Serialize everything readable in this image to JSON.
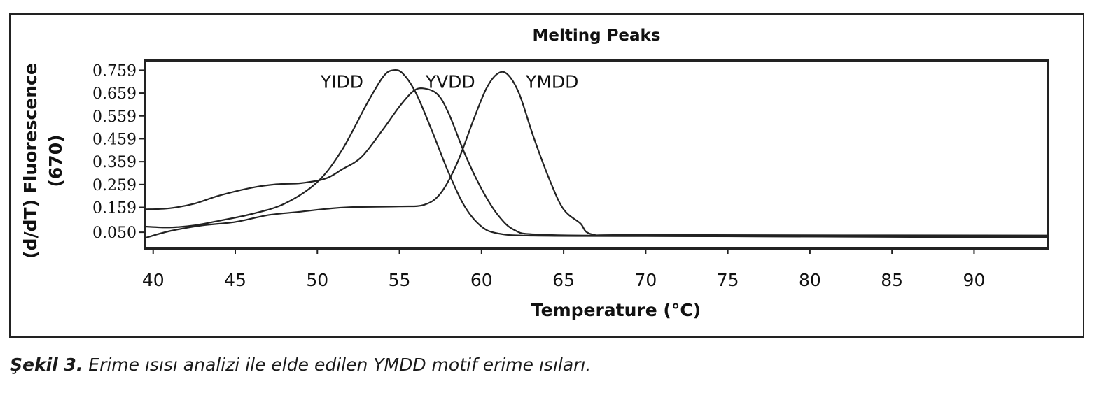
{
  "chart_data": {
    "type": "line",
    "title": "Melting Peaks",
    "xlabel": "Temperature (°C)",
    "ylabel_line1": "(d/dT) Fluorescence",
    "ylabel_line2": "(670)",
    "xlim": [
      39.5,
      94.5
    ],
    "ylim": [
      -0.02,
      0.8
    ],
    "x_ticks": [
      40,
      45,
      50,
      55,
      60,
      65,
      70,
      75,
      80,
      85,
      90
    ],
    "y_ticks": [
      0.05,
      0.159,
      0.259,
      0.359,
      0.459,
      0.559,
      0.659,
      0.759
    ],
    "y_tick_labels": [
      "0.050",
      "0.159",
      "0.259",
      "0.359",
      "0.459",
      "0.559",
      "0.659",
      "0.759"
    ],
    "grid": false,
    "series": [
      {
        "name": "YIDD",
        "points": [
          [
            39.5,
            0.075
          ],
          [
            41,
            0.071
          ],
          [
            42.5,
            0.08
          ],
          [
            44,
            0.1
          ],
          [
            46,
            0.13
          ],
          [
            48,
            0.175
          ],
          [
            50,
            0.27
          ],
          [
            51.5,
            0.41
          ],
          [
            53,
            0.61
          ],
          [
            54,
            0.73
          ],
          [
            54.6,
            0.759
          ],
          [
            55.2,
            0.745
          ],
          [
            56,
            0.66
          ],
          [
            57,
            0.49
          ],
          [
            58,
            0.31
          ],
          [
            59,
            0.16
          ],
          [
            60,
            0.075
          ],
          [
            61,
            0.045
          ],
          [
            63,
            0.035
          ],
          [
            70,
            0.033
          ],
          [
            94.5,
            0.03
          ]
        ]
      },
      {
        "name": "YVDD",
        "points": [
          [
            39.5,
            0.15
          ],
          [
            41,
            0.155
          ],
          [
            42.5,
            0.175
          ],
          [
            44,
            0.21
          ],
          [
            46,
            0.245
          ],
          [
            47.5,
            0.26
          ],
          [
            49,
            0.265
          ],
          [
            50.5,
            0.285
          ],
          [
            51.5,
            0.325
          ],
          [
            52.7,
            0.38
          ],
          [
            54,
            0.5
          ],
          [
            55,
            0.6
          ],
          [
            55.8,
            0.665
          ],
          [
            56.4,
            0.68
          ],
          [
            57.3,
            0.655
          ],
          [
            58,
            0.57
          ],
          [
            59,
            0.39
          ],
          [
            60,
            0.24
          ],
          [
            61,
            0.125
          ],
          [
            62,
            0.06
          ],
          [
            63.5,
            0.04
          ],
          [
            70,
            0.034
          ],
          [
            94.5,
            0.027
          ]
        ]
      },
      {
        "name": "YMDD",
        "points": [
          [
            39.5,
            0.025
          ],
          [
            41,
            0.055
          ],
          [
            43,
            0.08
          ],
          [
            45,
            0.095
          ],
          [
            47,
            0.125
          ],
          [
            49,
            0.14
          ],
          [
            50.5,
            0.152
          ],
          [
            52,
            0.16
          ],
          [
            55,
            0.163
          ],
          [
            56.5,
            0.17
          ],
          [
            57.5,
            0.22
          ],
          [
            58.5,
            0.35
          ],
          [
            59.5,
            0.54
          ],
          [
            60.3,
            0.68
          ],
          [
            61,
            0.745
          ],
          [
            61.6,
            0.74
          ],
          [
            62.3,
            0.655
          ],
          [
            63.2,
            0.46
          ],
          [
            64.2,
            0.27
          ],
          [
            65,
            0.15
          ],
          [
            66,
            0.09
          ],
          [
            66.8,
            0.04
          ],
          [
            70,
            0.038
          ],
          [
            94.5,
            0.036
          ]
        ]
      }
    ],
    "annotations": [
      {
        "text": "YIDD",
        "x": 51.5,
        "y": 0.71
      },
      {
        "text": "YVDD",
        "x": 58.1,
        "y": 0.71
      },
      {
        "text": "YMDD",
        "x": 64.3,
        "y": 0.71
      }
    ]
  },
  "caption": {
    "label": "Şekil 3.",
    "text": " Erime ısısı analizi ile elde edilen YMDD motif erime ısıları."
  }
}
